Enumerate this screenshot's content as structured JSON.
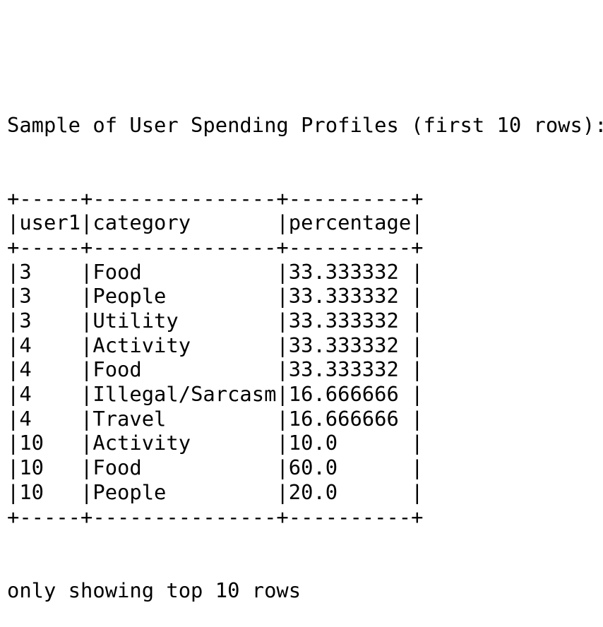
{
  "output": {
    "previous_line_partial": "                                                  ",
    "heading": "Sample of User Spending Profiles (first 10 rows):",
    "border": "+-----+---------------+----------+",
    "columns": [
      "user1",
      "category",
      "percentage"
    ],
    "column_widths": [
      5,
      15,
      10
    ],
    "rows": [
      [
        "3",
        "Food",
        "33.333332"
      ],
      [
        "3",
        "People",
        "33.333332"
      ],
      [
        "3",
        "Utility",
        "33.333332"
      ],
      [
        "4",
        "Activity",
        "33.333332"
      ],
      [
        "4",
        "Food",
        "33.333332"
      ],
      [
        "4",
        "Illegal/Sarcasm",
        "16.666666"
      ],
      [
        "4",
        "Travel",
        "16.666666"
      ],
      [
        "10",
        "Activity",
        "10.0"
      ],
      [
        "10",
        "Food",
        "60.0"
      ],
      [
        "10",
        "People",
        "20.0"
      ]
    ],
    "footer": "only showing top 10 rows"
  }
}
